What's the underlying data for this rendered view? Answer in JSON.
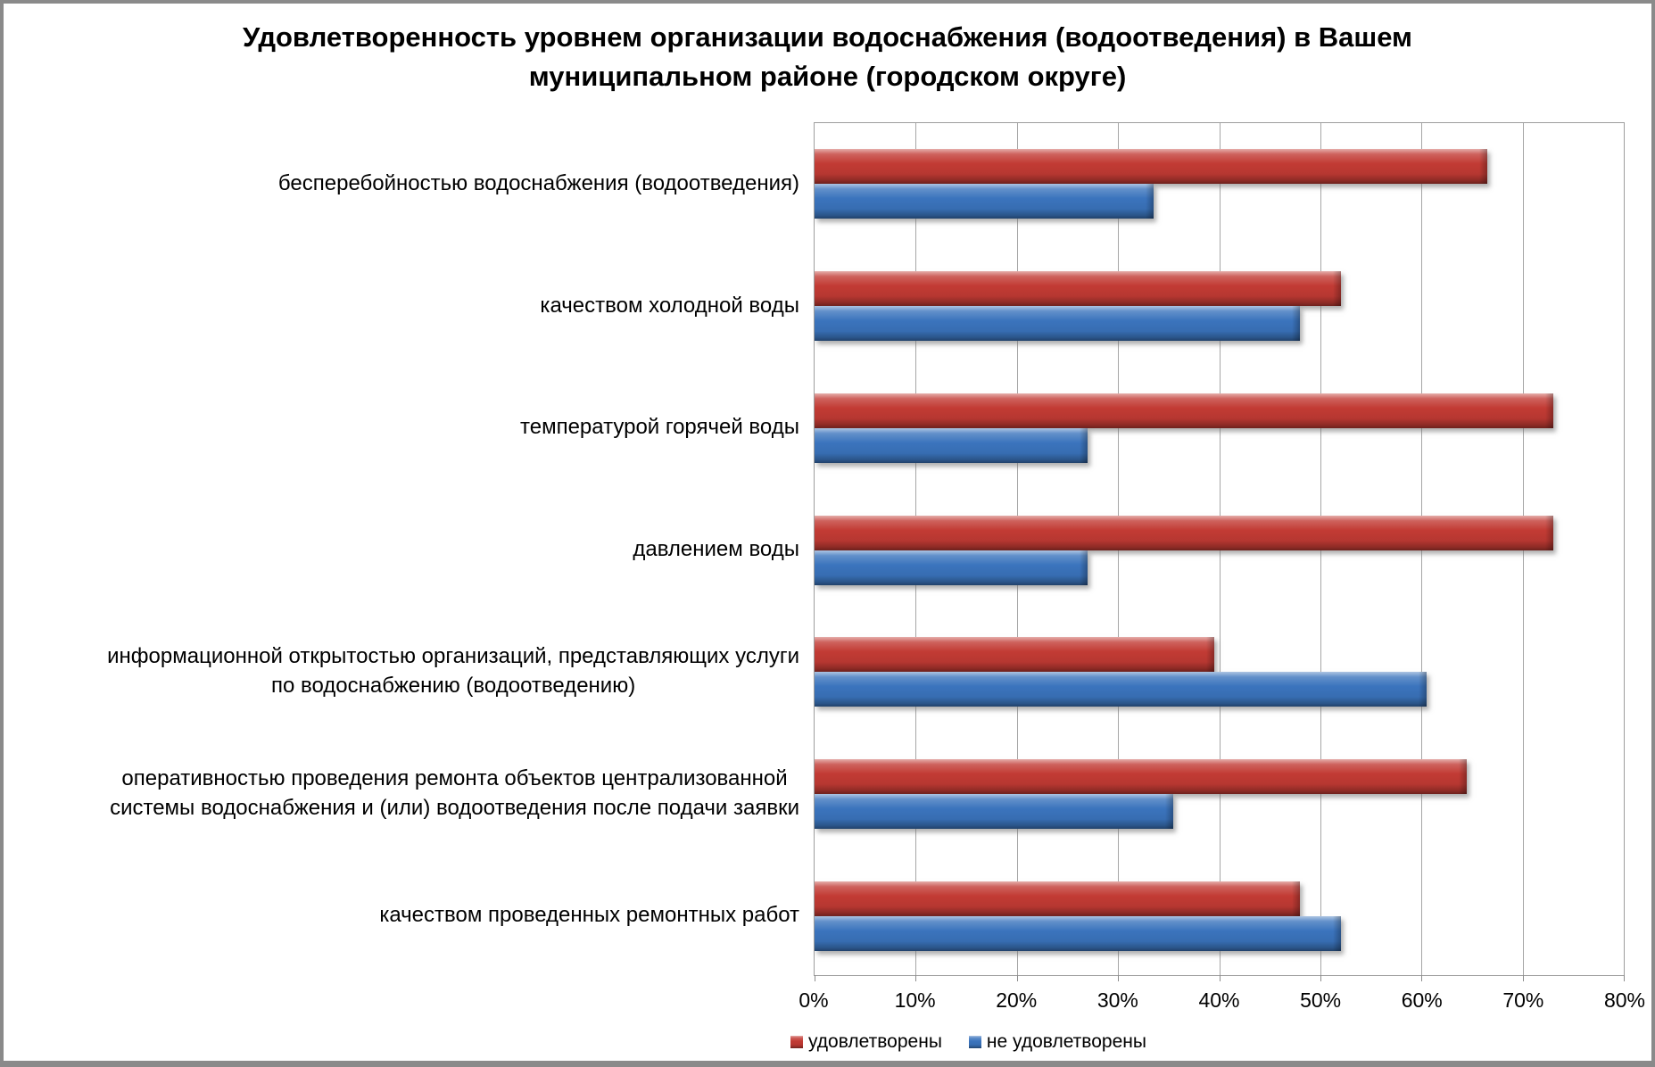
{
  "title": "Удовлетворенность уровнем организации водоснабжения (водоотведения) в Вашем\nмуниципальном районе (городском округе)",
  "chart_data": {
    "type": "bar",
    "orientation": "horizontal",
    "title": "Удовлетворенность уровнем организации водоснабжения (водоотведения) в Вашем муниципальном районе (городском округе)",
    "categories": [
      "бесперебойностью водоснабжения (водоотведения)",
      "качеством холодной воды",
      "температурой горячей воды",
      "давлением воды",
      "информационной открытостью организаций, представляющих услуги\nпо водоснабжению (водоотведению)",
      "оперативностью проведения ремонта объектов централизованной\nсистемы водоснабжения и (или) водоотведения после подачи заявки",
      "качеством проведенных ремонтных работ"
    ],
    "series": [
      {
        "id": "satisfied",
        "name": "удовлетворены",
        "color": "#c23b34",
        "values": [
          66.5,
          52,
          73,
          73,
          39.5,
          64.5,
          48
        ]
      },
      {
        "id": "dissatisfied",
        "name": "не удовлетворены",
        "color": "#3b74bd",
        "values": [
          33.5,
          48,
          27,
          27,
          60.5,
          35.5,
          52
        ]
      }
    ],
    "xlim": [
      0,
      80
    ],
    "x_ticks": [
      "0%",
      "10%",
      "20%",
      "30%",
      "40%",
      "50%",
      "60%",
      "70%",
      "80%"
    ],
    "grid": "vertical",
    "legend_position": "bottom",
    "axis_color": "#9e9e9e",
    "gridline_color": "#a6a6a6"
  }
}
